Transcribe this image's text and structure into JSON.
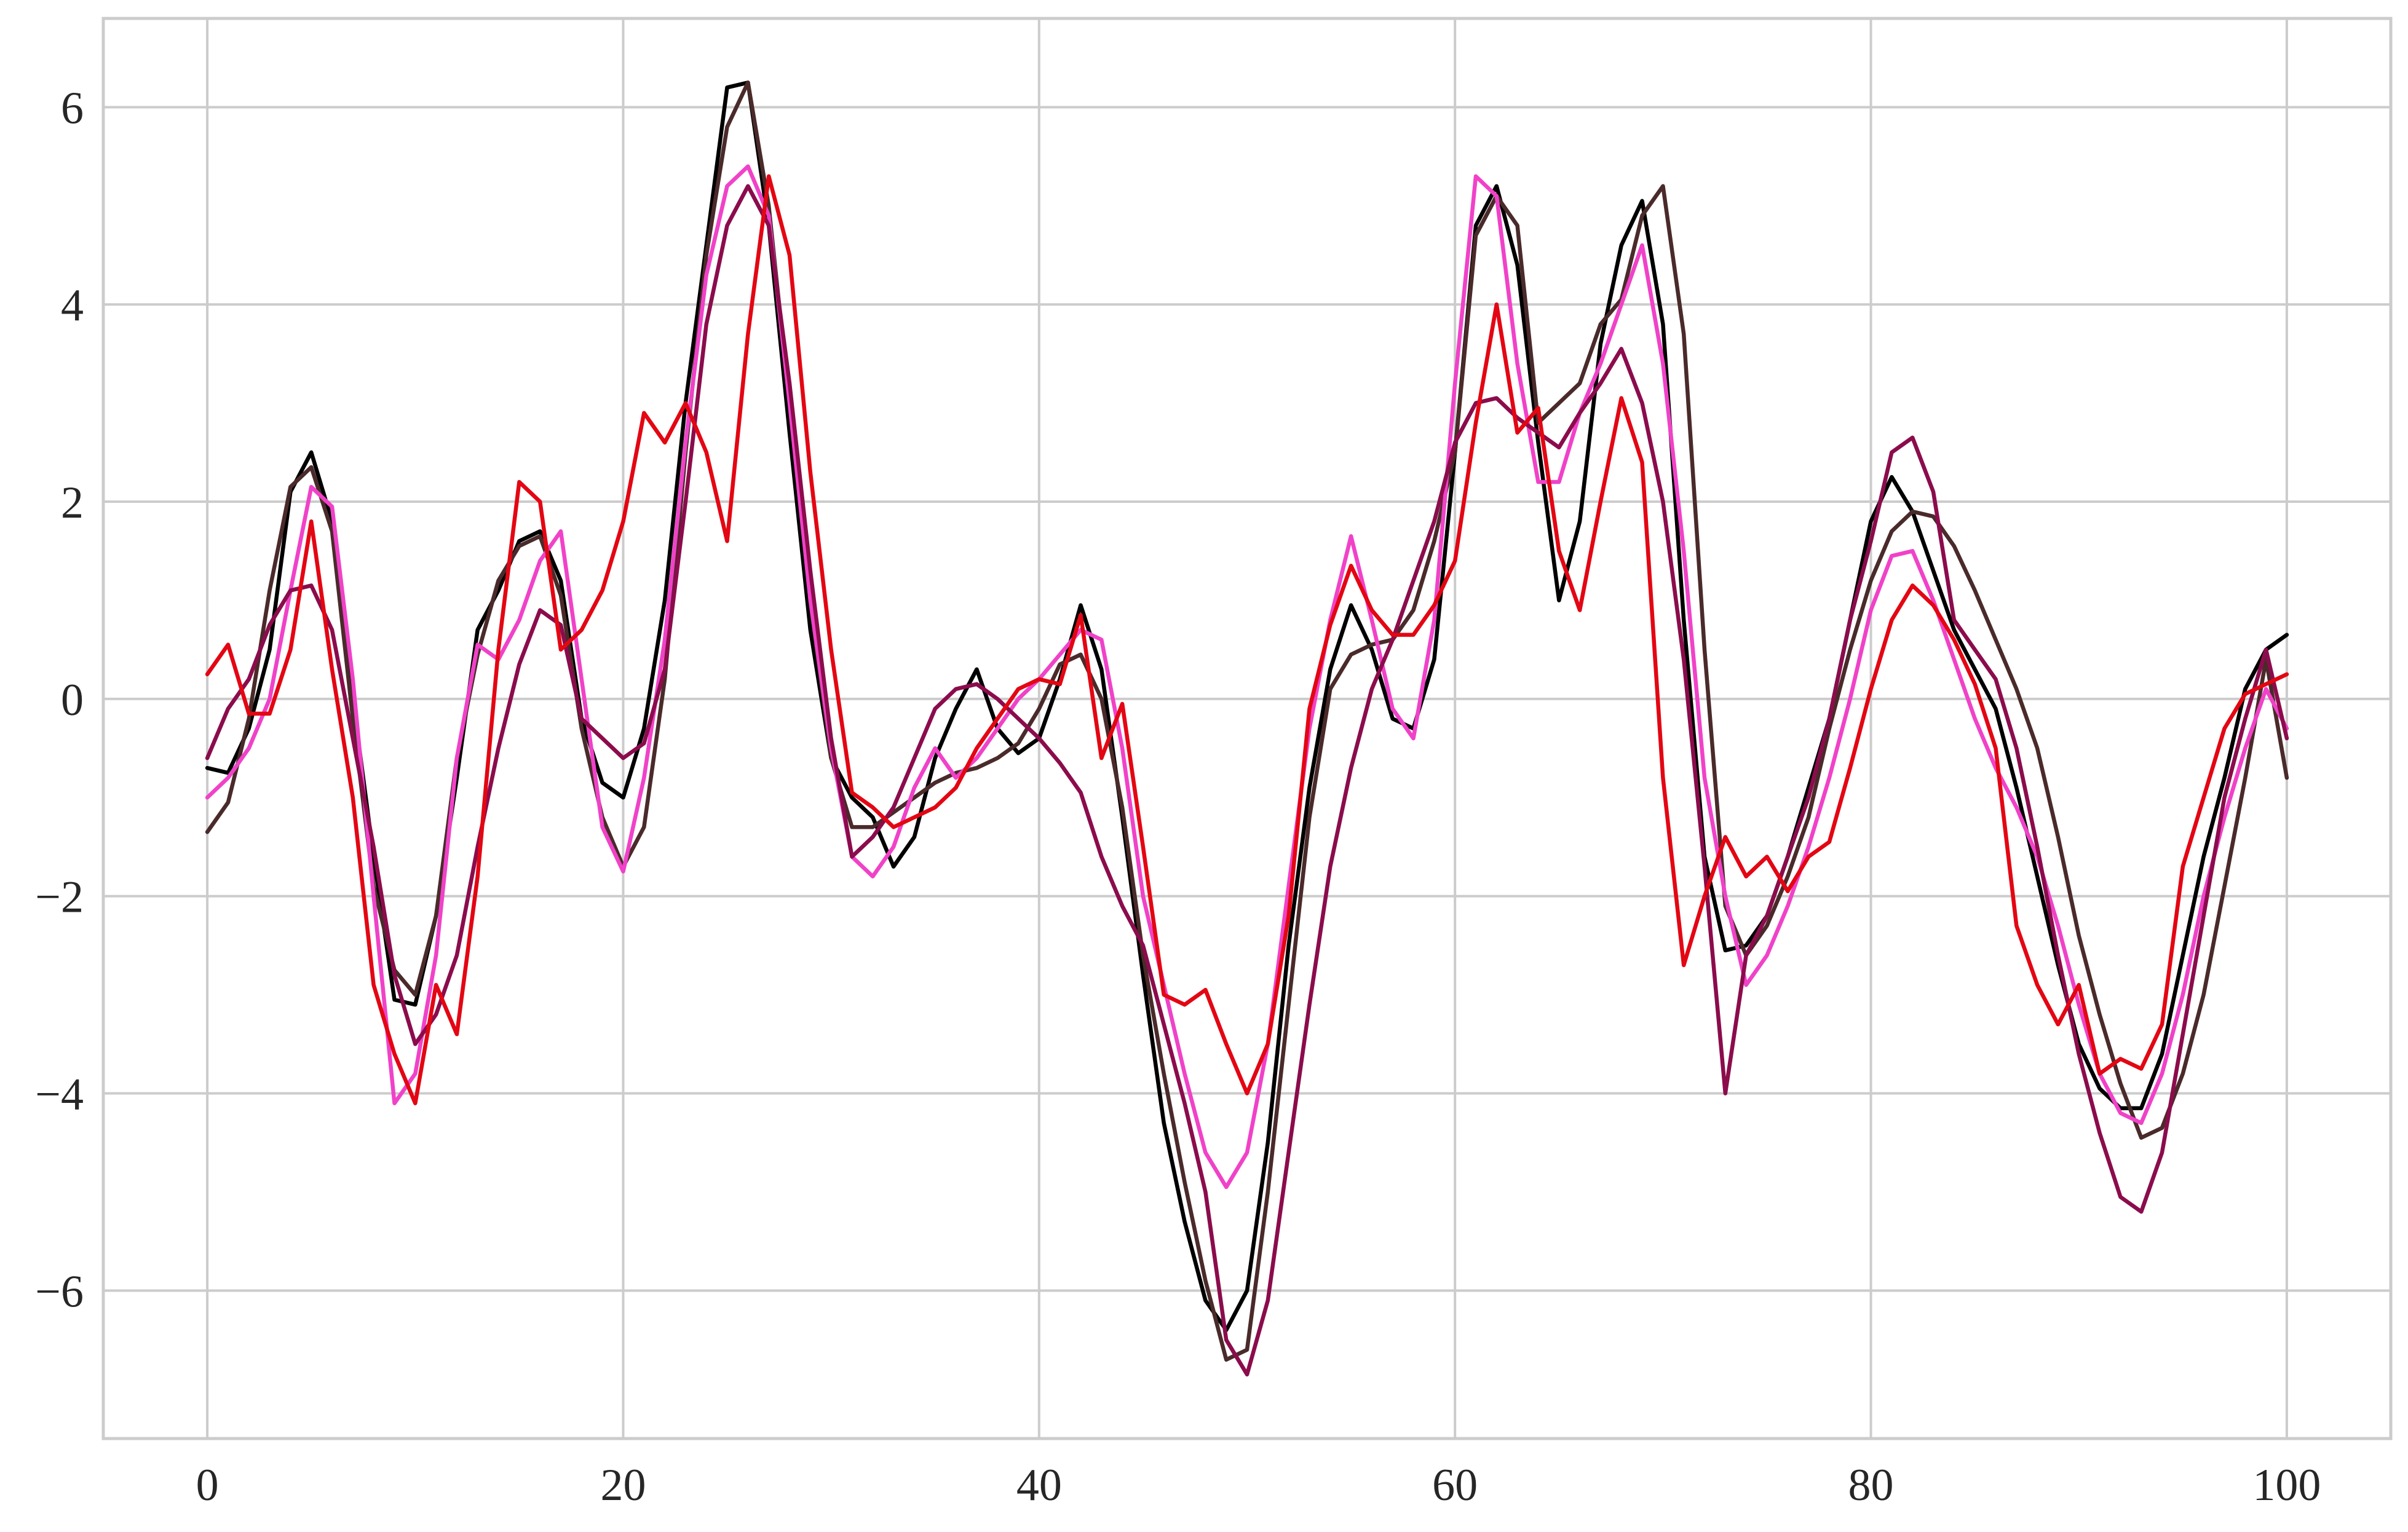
{
  "chart_data": {
    "type": "line",
    "xlim": [
      -5,
      105
    ],
    "ylim": [
      -7.5,
      6.9
    ],
    "grid": true,
    "legend": "none",
    "x_ticks": [
      0,
      20,
      40,
      60,
      80,
      100
    ],
    "y_ticks": [
      -6,
      -4,
      -2,
      0,
      2,
      4,
      6
    ],
    "x_tick_labels": [
      "0",
      "20",
      "40",
      "60",
      "80",
      "100"
    ],
    "y_tick_labels": [
      "−6",
      "−4",
      "−2",
      "0",
      "2",
      "4",
      "6"
    ],
    "x": [
      0,
      1,
      2,
      3,
      4,
      5,
      6,
      7,
      8,
      9,
      10,
      11,
      12,
      13,
      14,
      15,
      16,
      17,
      18,
      19,
      20,
      21,
      22,
      23,
      24,
      25,
      26,
      27,
      28,
      29,
      30,
      31,
      32,
      33,
      34,
      35,
      36,
      37,
      38,
      39,
      40,
      41,
      42,
      43,
      44,
      45,
      46,
      47,
      48,
      49,
      50,
      51,
      52,
      53,
      54,
      55,
      56,
      57,
      58,
      59,
      60,
      61,
      62,
      63,
      64,
      65,
      66,
      67,
      68,
      69,
      70,
      71,
      72,
      73,
      74,
      75,
      76,
      77,
      78,
      79,
      80,
      81,
      82,
      83,
      84,
      85,
      86,
      87,
      88,
      89,
      90,
      91,
      92,
      93,
      94,
      95,
      96,
      97,
      98,
      99,
      100
    ],
    "series": [
      {
        "color": "#000000",
        "values": [
          -0.7,
          -0.75,
          -0.3,
          0.5,
          2.1,
          2.5,
          1.8,
          0.0,
          -1.6,
          -3.05,
          -3.1,
          -2.2,
          -0.8,
          0.7,
          1.1,
          1.6,
          1.7,
          1.2,
          -0.2,
          -0.85,
          -1.0,
          -0.3,
          1.0,
          3.0,
          4.6,
          6.2,
          6.25,
          4.8,
          2.7,
          0.7,
          -0.6,
          -1.0,
          -1.2,
          -1.7,
          -1.4,
          -0.6,
          -0.1,
          0.3,
          -0.3,
          -0.55,
          -0.4,
          0.2,
          0.95,
          0.3,
          -1.2,
          -2.8,
          -4.3,
          -5.3,
          -6.1,
          -6.4,
          -6.0,
          -4.5,
          -2.5,
          -0.9,
          0.3,
          0.95,
          0.5,
          -0.2,
          -0.3,
          0.4,
          2.5,
          4.8,
          5.2,
          4.4,
          2.6,
          1.0,
          1.8,
          3.6,
          4.6,
          5.05,
          3.8,
          0.8,
          -1.6,
          -2.55,
          -2.5,
          -2.2,
          -1.6,
          -0.9,
          -0.2,
          0.8,
          1.8,
          2.25,
          1.9,
          1.3,
          0.7,
          0.3,
          -0.1,
          -0.9,
          -1.8,
          -2.7,
          -3.5,
          -3.95,
          -4.15,
          -4.15,
          -3.6,
          -2.6,
          -1.6,
          -0.8,
          0.1,
          0.5,
          0.65
        ]
      },
      {
        "color": "#4a2a2a",
        "values": [
          -1.35,
          -1.05,
          -0.2,
          1.1,
          2.15,
          2.35,
          1.7,
          -0.2,
          -1.9,
          -2.75,
          -3.0,
          -2.2,
          -0.6,
          0.45,
          1.2,
          1.55,
          1.65,
          1.05,
          -0.3,
          -1.2,
          -1.7,
          -1.3,
          0.2,
          2.5,
          4.5,
          5.8,
          6.25,
          5.0,
          3.0,
          1.0,
          -0.6,
          -1.3,
          -1.3,
          -1.15,
          -1.0,
          -0.85,
          -0.75,
          -0.7,
          -0.6,
          -0.45,
          -0.1,
          0.35,
          0.45,
          0.0,
          -1.1,
          -2.6,
          -3.8,
          -4.9,
          -5.9,
          -6.7,
          -6.6,
          -5.0,
          -3.1,
          -1.2,
          0.1,
          0.45,
          0.55,
          0.6,
          0.9,
          1.6,
          2.5,
          4.7,
          5.1,
          4.8,
          2.8,
          3.0,
          3.2,
          3.8,
          4.05,
          4.9,
          5.2,
          3.7,
          0.5,
          -2.1,
          -2.6,
          -2.3,
          -1.8,
          -1.2,
          -0.3,
          0.5,
          1.2,
          1.7,
          1.9,
          1.85,
          1.55,
          1.1,
          0.6,
          0.1,
          -0.5,
          -1.4,
          -2.4,
          -3.2,
          -3.9,
          -4.45,
          -4.35,
          -3.8,
          -3.0,
          -1.9,
          -0.8,
          0.4,
          -0.8
        ]
      },
      {
        "color": "#f042c8",
        "values": [
          -1.0,
          -0.8,
          -0.5,
          0.0,
          1.1,
          2.15,
          1.95,
          0.2,
          -2.0,
          -4.1,
          -3.8,
          -2.6,
          -0.6,
          0.55,
          0.4,
          0.8,
          1.4,
          1.7,
          0.2,
          -1.3,
          -1.75,
          -0.8,
          0.6,
          2.6,
          4.3,
          5.2,
          5.4,
          4.9,
          3.0,
          1.0,
          -0.5,
          -1.6,
          -1.8,
          -1.5,
          -0.9,
          -0.5,
          -0.8,
          -0.6,
          -0.3,
          0.0,
          0.2,
          0.45,
          0.7,
          0.6,
          -0.5,
          -2.0,
          -2.9,
          -3.8,
          -4.6,
          -4.95,
          -4.6,
          -3.5,
          -1.9,
          -0.3,
          0.8,
          1.65,
          0.8,
          -0.1,
          -0.4,
          0.8,
          3.2,
          5.3,
          5.1,
          3.4,
          2.2,
          2.2,
          2.9,
          3.4,
          4.0,
          4.6,
          3.4,
          1.5,
          -0.8,
          -2.0,
          -2.9,
          -2.6,
          -2.1,
          -1.5,
          -0.8,
          0.0,
          0.9,
          1.45,
          1.5,
          1.0,
          0.4,
          -0.2,
          -0.7,
          -1.1,
          -1.6,
          -2.3,
          -3.1,
          -3.8,
          -4.2,
          -4.3,
          -3.8,
          -3.0,
          -2.0,
          -1.2,
          -0.5,
          0.1,
          -0.3
        ]
      },
      {
        "color": "#8b0c4c",
        "values": [
          -0.6,
          -0.1,
          0.2,
          0.75,
          1.1,
          1.15,
          0.7,
          -0.4,
          -1.5,
          -2.8,
          -3.5,
          -3.2,
          -2.6,
          -1.5,
          -0.5,
          0.35,
          0.9,
          0.75,
          -0.2,
          -0.4,
          -0.6,
          -0.45,
          0.3,
          2.0,
          3.8,
          4.8,
          5.2,
          4.8,
          3.2,
          1.3,
          -0.4,
          -1.6,
          -1.4,
          -1.1,
          -0.6,
          -0.1,
          0.1,
          0.15,
          0.0,
          -0.2,
          -0.4,
          -0.65,
          -0.95,
          -1.6,
          -2.1,
          -2.5,
          -3.3,
          -4.1,
          -5.0,
          -6.5,
          -6.85,
          -6.1,
          -4.6,
          -3.1,
          -1.7,
          -0.7,
          0.1,
          0.6,
          1.2,
          1.8,
          2.6,
          3.0,
          3.05,
          2.85,
          2.7,
          2.55,
          2.9,
          3.2,
          3.55,
          3.0,
          2.0,
          0.4,
          -1.7,
          -4.0,
          -2.6,
          -2.2,
          -1.6,
          -1.0,
          -0.2,
          0.8,
          1.6,
          2.5,
          2.65,
          2.1,
          0.8,
          0.5,
          0.2,
          -0.5,
          -1.5,
          -2.6,
          -3.6,
          -4.4,
          -5.05,
          -5.2,
          -4.6,
          -3.4,
          -2.2,
          -1.0,
          -0.2,
          0.5,
          -0.4
        ]
      },
      {
        "color": "#e30613",
        "values": [
          0.25,
          0.55,
          -0.15,
          -0.15,
          0.5,
          1.8,
          0.3,
          -1.0,
          -2.9,
          -3.6,
          -4.1,
          -2.9,
          -3.4,
          -1.8,
          0.5,
          2.2,
          2.0,
          0.5,
          0.7,
          1.1,
          1.8,
          2.9,
          2.6,
          3.0,
          2.5,
          1.6,
          3.7,
          5.3,
          4.5,
          2.3,
          0.5,
          -0.95,
          -1.1,
          -1.3,
          -1.2,
          -1.1,
          -0.9,
          -0.5,
          -0.2,
          0.1,
          0.2,
          0.15,
          0.85,
          -0.6,
          -0.05,
          -1.5,
          -3.0,
          -3.1,
          -2.95,
          -3.5,
          -4.0,
          -3.5,
          -2.2,
          -0.1,
          0.75,
          1.35,
          0.9,
          0.65,
          0.65,
          0.95,
          1.4,
          2.8,
          4.0,
          2.7,
          2.95,
          1.5,
          0.9,
          2.0,
          3.05,
          2.4,
          -0.8,
          -2.7,
          -2.0,
          -1.4,
          -1.8,
          -1.6,
          -1.95,
          -1.6,
          -1.45,
          -0.7,
          0.1,
          0.8,
          1.15,
          0.95,
          0.6,
          0.15,
          -0.5,
          -2.3,
          -2.9,
          -3.3,
          -2.9,
          -3.8,
          -3.65,
          -3.75,
          -3.3,
          -1.7,
          -1.0,
          -0.3,
          0.05,
          0.15,
          0.25
        ]
      }
    ]
  }
}
